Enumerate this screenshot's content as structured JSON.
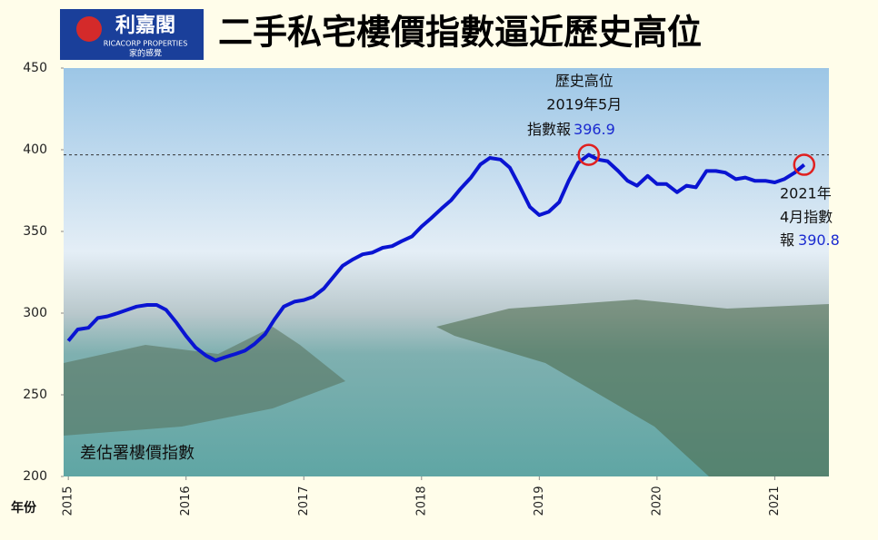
{
  "chart_data": {
    "type": "line",
    "title": "二手私宅樓價指數逼近歷史高位",
    "logo": {
      "name": "利嘉閣",
      "english": "RICACORP PROPERTIES",
      "slogan": "家的感覺"
    },
    "source": "差估署樓價指數",
    "x_label": "年份",
    "x": [
      2015,
      2015.08,
      2015.17,
      2015.25,
      2015.33,
      2015.42,
      2015.5,
      2015.58,
      2015.67,
      2015.75,
      2015.83,
      2015.92,
      2016,
      2016.08,
      2016.17,
      2016.25,
      2016.33,
      2016.42,
      2016.5,
      2016.58,
      2016.67,
      2016.75,
      2016.83,
      2016.92,
      2017,
      2017.08,
      2017.17,
      2017.25,
      2017.33,
      2017.42,
      2017.5,
      2017.58,
      2017.67,
      2017.75,
      2017.83,
      2017.92,
      2018,
      2018.08,
      2018.17,
      2018.25,
      2018.33,
      2018.42,
      2018.5,
      2018.58,
      2018.67,
      2018.75,
      2018.83,
      2018.92,
      2019,
      2019.08,
      2019.17,
      2019.25,
      2019.33,
      2019.42,
      2019.5,
      2019.58,
      2019.67,
      2019.75,
      2019.83,
      2019.92,
      2020,
      2020.08,
      2020.17,
      2020.25,
      2020.33,
      2020.42,
      2020.5,
      2020.58,
      2020.67,
      2020.75,
      2020.83,
      2020.92,
      2021,
      2021.08,
      2021.17,
      2021.25
    ],
    "series": [
      {
        "color": "#0a14d2",
        "values": [
          283,
          290,
          291,
          297,
          298,
          300,
          302,
          304,
          305,
          305,
          302,
          294,
          286,
          279,
          274,
          271,
          273,
          275,
          277,
          281,
          287,
          296,
          304,
          307,
          308,
          310,
          315,
          322,
          329,
          333,
          336,
          337,
          340,
          341,
          344,
          347,
          353,
          358,
          364,
          369,
          376,
          383,
          391,
          395,
          394,
          389,
          378,
          365,
          360,
          362,
          368,
          381,
          392,
          396.9,
          394,
          393,
          387,
          381,
          378,
          384,
          379,
          379,
          374,
          378,
          377,
          387,
          387,
          386,
          382,
          383,
          381,
          381,
          380,
          382,
          386,
          390.8
        ]
      }
    ],
    "annotations": [
      {
        "lines": [
          "歷史高位",
          "2019年5月",
          "指數報"
        ],
        "value_label": "396.9"
      },
      {
        "lines": [
          "2021年",
          "4月指數",
          "報"
        ],
        "value_label": "390.8"
      }
    ],
    "xlim": [
      2014.96,
      2021.46
    ],
    "xticks": [
      2015,
      2016,
      2017,
      2018,
      2019,
      2020,
      2021
    ],
    "ylim": [
      200,
      450
    ],
    "yticks": [
      200,
      250,
      300,
      350,
      400,
      450
    ]
  }
}
